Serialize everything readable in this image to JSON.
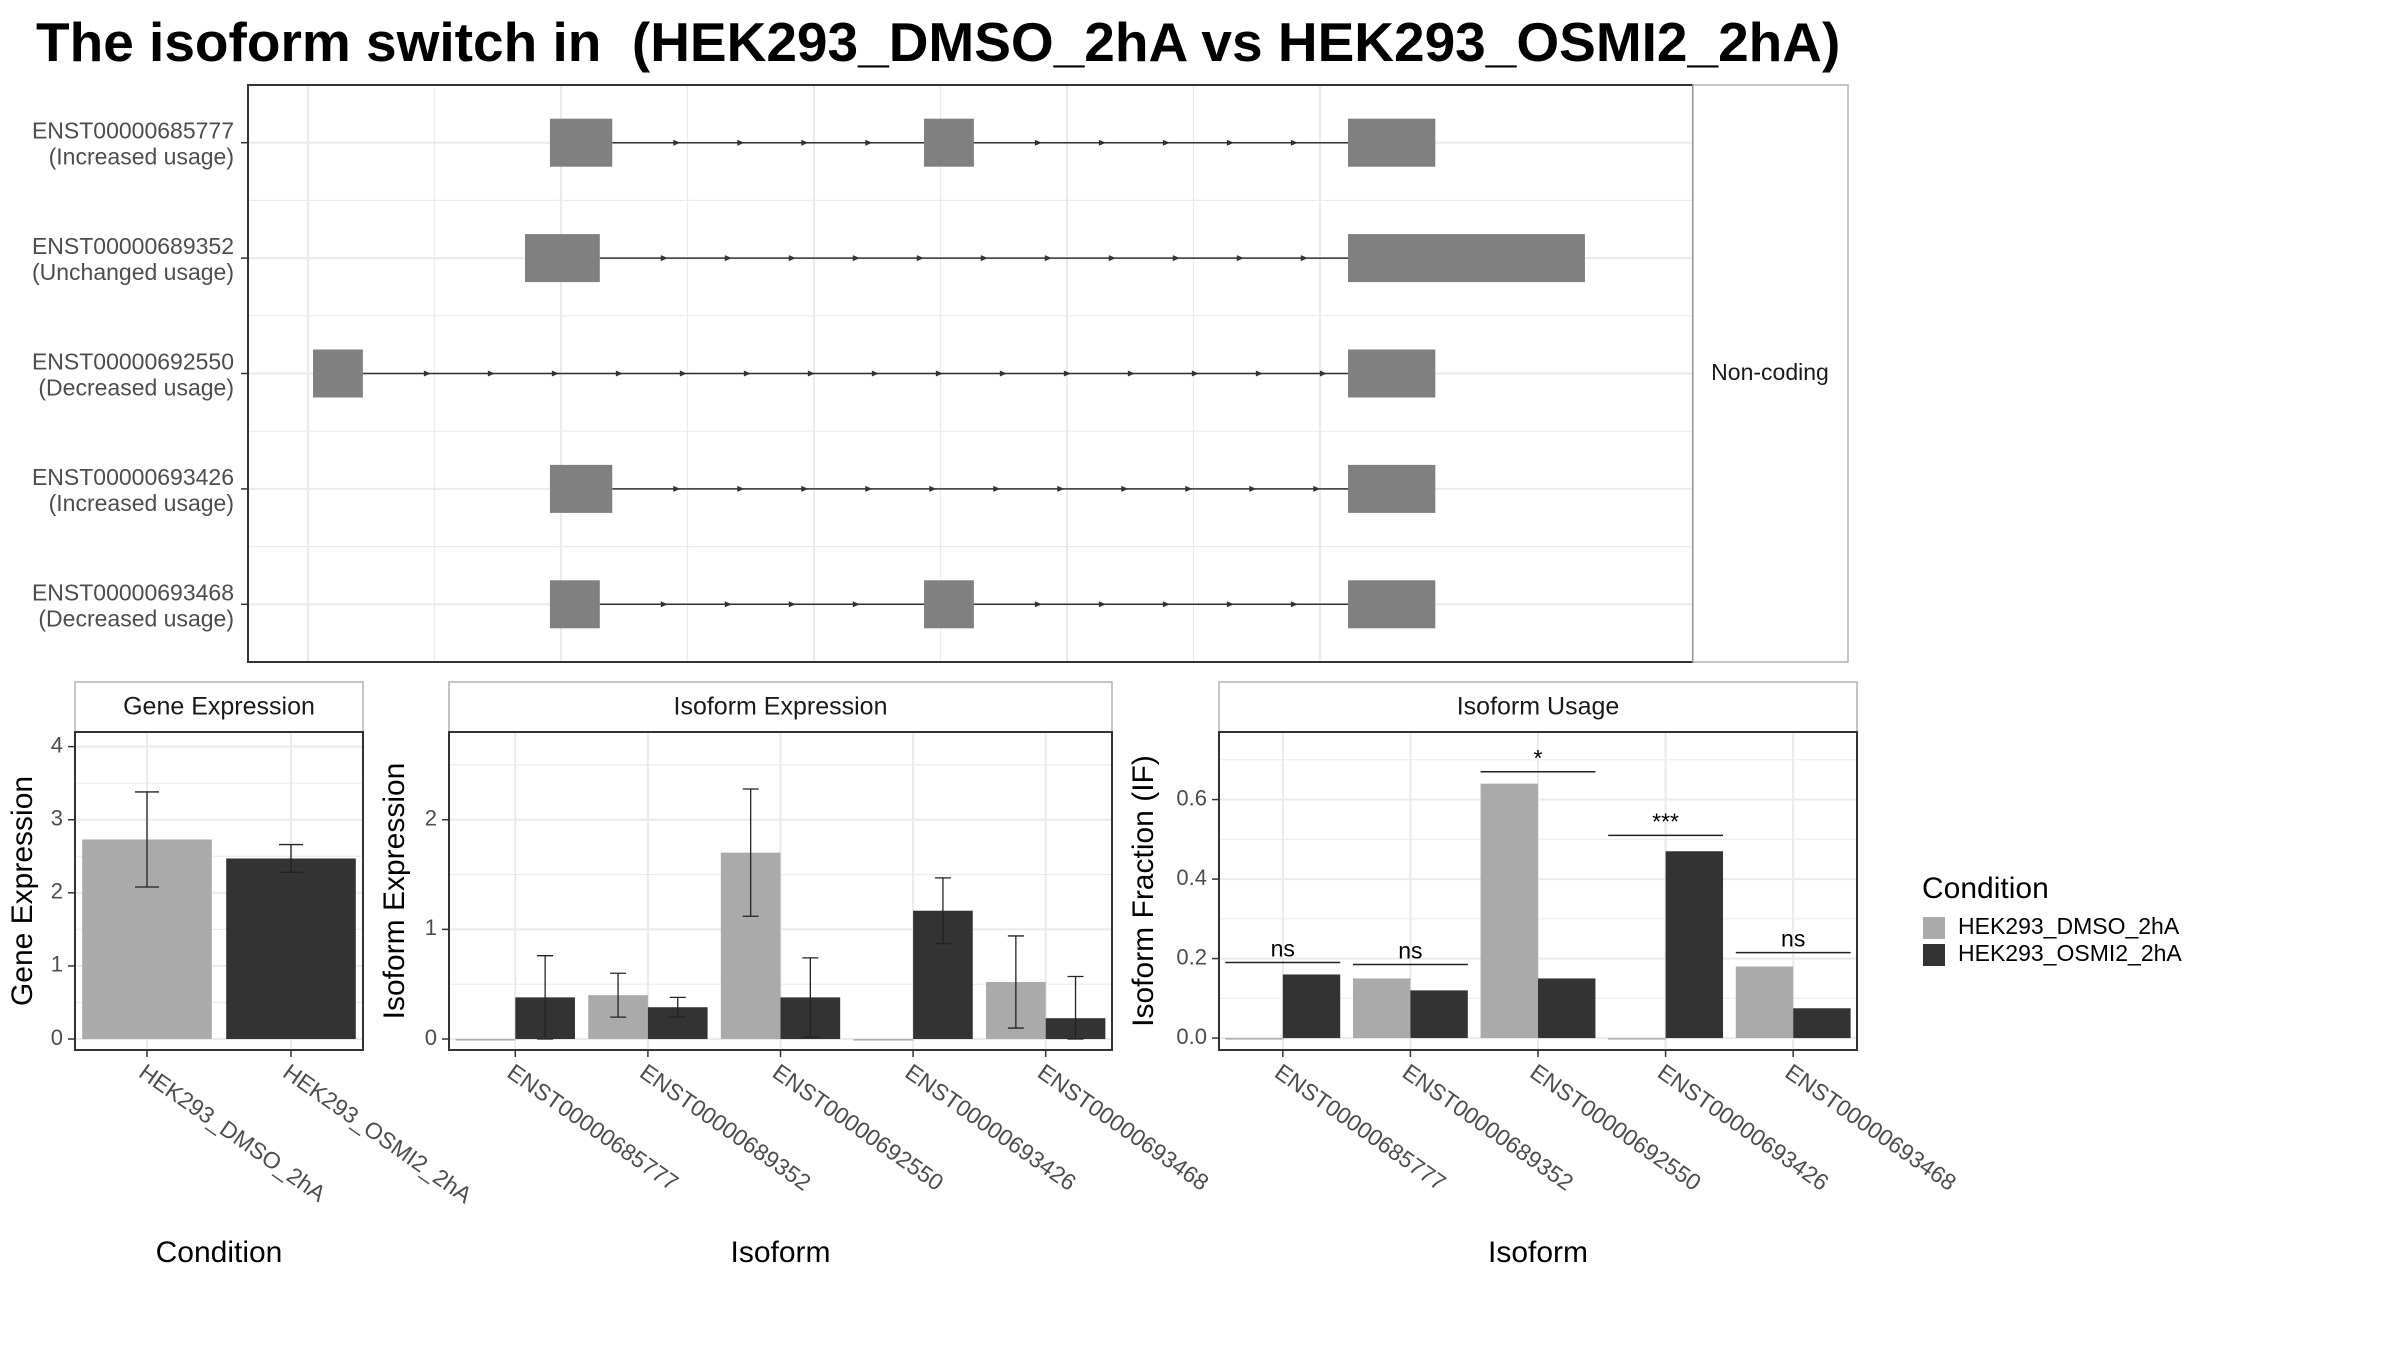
{
  "title": "The isoform switch in  (HEK293_DMSO_2hA vs HEK293_OSMI2_2hA)",
  "colors": {
    "exon": "#808080",
    "DMSO": "#aaaaaa",
    "OSMI2": "#333333",
    "grid": "#ebebeb",
    "panel_border": "#333333",
    "strip_fill": "#ffffff"
  },
  "chart_data": [
    {
      "type": "gene-structure",
      "facet_label": "Non-coding",
      "xlim": [
        0,
        1
      ],
      "isoforms": [
        {
          "id": "ENST00000685777",
          "usage": "(Increased usage)",
          "exons": [
            [
              0.19,
              0.24
            ],
            [
              0.49,
              0.53
            ],
            [
              0.83,
              0.9
            ]
          ]
        },
        {
          "id": "ENST00000689352",
          "usage": "(Unchanged usage)",
          "exons": [
            [
              0.17,
              0.23
            ],
            [
              0.83,
              1.02
            ]
          ]
        },
        {
          "id": "ENST00000692550",
          "usage": "(Decreased usage)",
          "exons": [
            [
              0.0,
              0.04
            ],
            [
              0.83,
              0.9
            ]
          ]
        },
        {
          "id": "ENST00000693426",
          "usage": "(Increased usage)",
          "exons": [
            [
              0.19,
              0.24
            ],
            [
              0.83,
              0.9
            ]
          ]
        },
        {
          "id": "ENST00000693468",
          "usage": "(Decreased usage)",
          "exons": [
            [
              0.19,
              0.23
            ],
            [
              0.49,
              0.53
            ],
            [
              0.83,
              0.9
            ]
          ]
        }
      ]
    },
    {
      "type": "bar",
      "title": "Gene Expression",
      "xlabel": "Condition",
      "ylabel": "Gene Expression",
      "ylim": [
        -0.15,
        4.2
      ],
      "yticks": [
        0,
        1,
        2,
        3,
        4
      ],
      "categories": [
        "HEK293_DMSO_2hA",
        "HEK293_OSMI2_2hA"
      ],
      "values": [
        2.73,
        2.47
      ],
      "error_low": [
        2.08,
        2.28
      ],
      "error_high": [
        3.38,
        2.66
      ]
    },
    {
      "type": "bar",
      "title": "Isoform Expression",
      "xlabel": "Isoform",
      "ylabel": "Isoform Expression",
      "ylim": [
        -0.1,
        2.8
      ],
      "yticks": [
        0,
        1,
        2
      ],
      "categories": [
        "ENST00000685777",
        "ENST00000689352",
        "ENST00000692550",
        "ENST00000693426",
        "ENST00000693468"
      ],
      "series": [
        {
          "name": "HEK293_DMSO_2hA",
          "values": [
            0.0,
            0.4,
            1.7,
            0.0,
            0.52
          ],
          "error_low": [
            0.0,
            0.2,
            1.12,
            0.0,
            0.1
          ],
          "error_high": [
            0.0,
            0.6,
            2.28,
            0.0,
            0.94
          ]
        },
        {
          "name": "HEK293_OSMI2_2hA",
          "values": [
            0.38,
            0.29,
            0.38,
            1.17,
            0.19
          ],
          "error_low": [
            0.0,
            0.2,
            0.02,
            0.87,
            0.0
          ],
          "error_high": [
            0.76,
            0.38,
            0.74,
            1.47,
            0.57
          ]
        }
      ]
    },
    {
      "type": "bar",
      "title": "Isoform Usage",
      "xlabel": "Isoform",
      "ylabel": "Isoform Fraction (IF)",
      "ylim": [
        -0.03,
        0.77
      ],
      "yticks": [
        0.0,
        0.2,
        0.4,
        0.6
      ],
      "ytick_labels": [
        "0.0",
        "0.2",
        "0.4",
        "0.6"
      ],
      "categories": [
        "ENST00000685777",
        "ENST00000689352",
        "ENST00000692550",
        "ENST00000693426",
        "ENST00000693468"
      ],
      "series": [
        {
          "name": "HEK293_DMSO_2hA",
          "values": [
            0.0,
            0.15,
            0.64,
            0.0,
            0.18
          ]
        },
        {
          "name": "HEK293_OSMI2_2hA",
          "values": [
            0.16,
            0.12,
            0.15,
            0.47,
            0.075
          ]
        }
      ],
      "significance": [
        {
          "label": "ns",
          "y": 0.19
        },
        {
          "label": "ns",
          "y": 0.185
        },
        {
          "label": "*",
          "y": 0.67
        },
        {
          "label": "***",
          "y": 0.51
        },
        {
          "label": "ns",
          "y": 0.215
        }
      ]
    }
  ],
  "legend": {
    "title": "Condition",
    "placement": "right",
    "entries": [
      "HEK293_DMSO_2hA",
      "HEK293_OSMI2_2hA"
    ]
  }
}
